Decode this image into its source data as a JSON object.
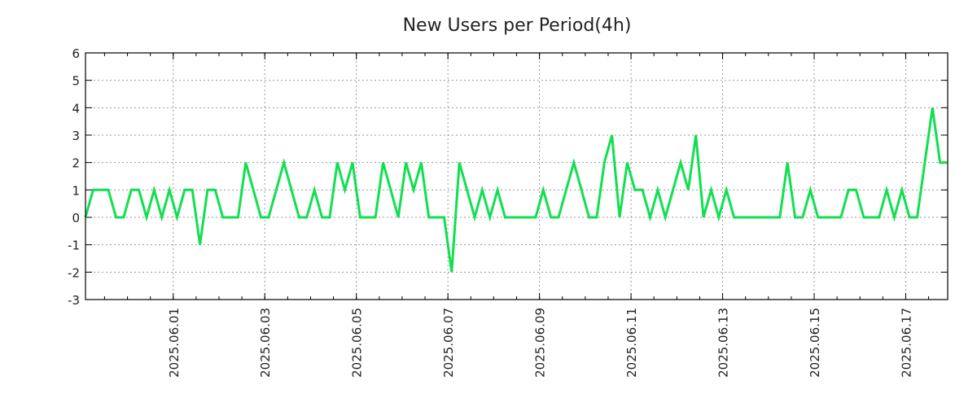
{
  "chart_data": {
    "type": "line",
    "title": "New Users per Period(4h)",
    "xlabel": "",
    "ylabel": "",
    "x_start": "2025-05-30T02:00",
    "interval_hours": 4,
    "x_end": "2025-06-17T22:00",
    "ylim": [
      -3,
      6
    ],
    "yticks": [
      -3,
      -2,
      -1,
      0,
      1,
      2,
      3,
      4,
      5,
      6
    ],
    "xticks": [
      {
        "date": "2025-06-01T00:00",
        "label": "2025.06.01"
      },
      {
        "date": "2025-06-03T00:00",
        "label": "2025.06.03"
      },
      {
        "date": "2025-06-05T00:00",
        "label": "2025.06.05"
      },
      {
        "date": "2025-06-07T00:00",
        "label": "2025.06.07"
      },
      {
        "date": "2025-06-09T00:00",
        "label": "2025.06.09"
      },
      {
        "date": "2025-06-11T00:00",
        "label": "2025.06.11"
      },
      {
        "date": "2025-06-13T00:00",
        "label": "2025.06.13"
      },
      {
        "date": "2025-06-15T00:00",
        "label": "2025.06.15"
      },
      {
        "date": "2025-06-17T00:00",
        "label": "2025.06.17"
      }
    ],
    "grid": true,
    "legend": "none",
    "series": [
      {
        "name": "New Users",
        "color": "#10e050",
        "values": [
          0,
          1,
          1,
          1,
          0,
          0,
          1,
          1,
          0,
          1,
          0,
          1,
          0,
          1,
          1,
          -1,
          1,
          1,
          0,
          0,
          0,
          2,
          1,
          0,
          0,
          1,
          2,
          1,
          0,
          0,
          1,
          0,
          0,
          2,
          1,
          2,
          0,
          0,
          0,
          2,
          1,
          0,
          2,
          1,
          2,
          0,
          0,
          0,
          -2,
          2,
          1,
          0,
          1,
          0,
          1,
          0,
          0,
          0,
          0,
          0,
          1,
          0,
          0,
          1,
          2,
          1,
          0,
          0,
          2,
          3,
          0,
          2,
          1,
          1,
          0,
          1,
          0,
          1,
          2,
          1,
          3,
          0,
          1,
          0,
          1,
          0,
          0,
          0,
          0,
          0,
          0,
          0,
          2,
          0,
          0,
          1,
          0,
          0,
          0,
          0,
          1,
          1,
          0,
          0,
          0,
          1,
          0,
          1,
          0,
          0,
          2,
          4,
          2,
          2
        ]
      }
    ]
  }
}
